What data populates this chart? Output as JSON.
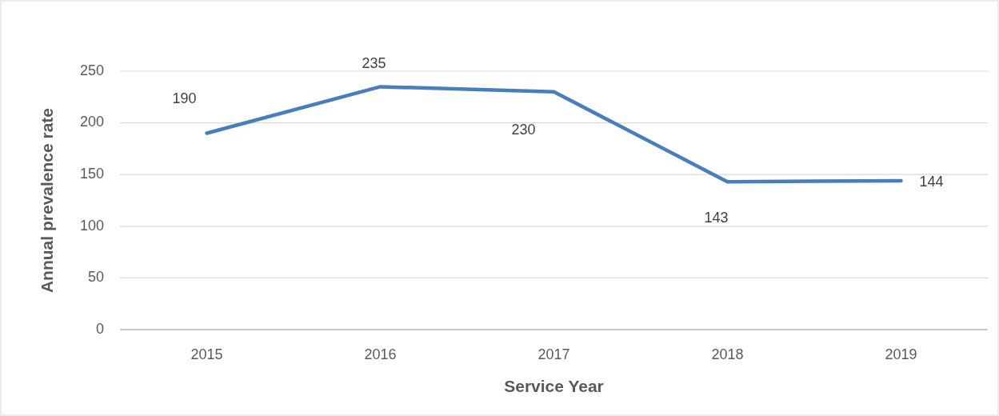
{
  "chart_data": {
    "type": "line",
    "xlabel": "Service Year",
    "ylabel": "Annual prevalence rate",
    "categories": [
      "2015",
      "2016",
      "2017",
      "2018",
      "2019"
    ],
    "series": [
      {
        "color": "#4a7ebb",
        "values": [
          190,
          235,
          230,
          143,
          144
        ]
      }
    ],
    "ylim": [
      0,
      250
    ],
    "yticks": [
      0,
      50,
      100,
      150,
      200,
      250
    ],
    "grid": "y",
    "marker": "none",
    "line_style": "solid",
    "data_labels": true
  }
}
